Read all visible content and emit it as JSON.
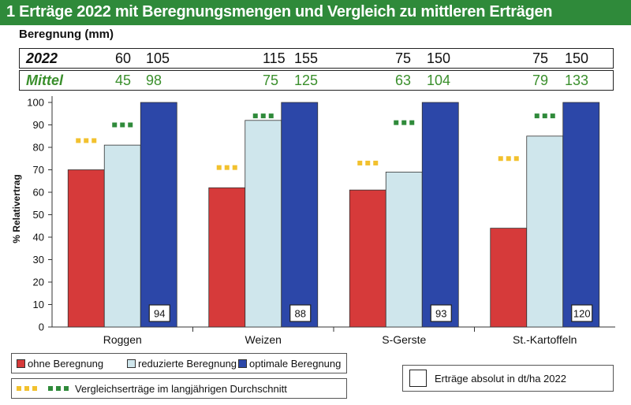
{
  "title": "1 Erträge 2022 mit Beregnungsmengen und Vergleich zu mittleren Erträgen",
  "irrigation": {
    "label": "Beregnung (mm)",
    "row_2022": {
      "label": "2022",
      "values": [
        "60",
        "105",
        "115",
        "155",
        "75",
        "150",
        "75",
        "150"
      ]
    },
    "row_mittel": {
      "label": "Mittel",
      "values": [
        "45",
        "98",
        "75",
        "125",
        "63",
        "104",
        "79",
        "133"
      ]
    }
  },
  "chart_data": {
    "type": "bar",
    "title": "",
    "xlabel": "",
    "ylabel": "% Relativertrag",
    "ylim": [
      0,
      100
    ],
    "yticks": [
      0,
      10,
      20,
      30,
      40,
      50,
      60,
      70,
      80,
      90,
      100
    ],
    "grid": false,
    "categories": [
      "Roggen",
      "Weizen",
      "S-Gerste",
      "St.-Kartoffeln"
    ],
    "series": [
      {
        "name": "ohne Beregnung",
        "color": "#d63a3a",
        "values": [
          70,
          62,
          61,
          44
        ]
      },
      {
        "name": "reduzierte Beregnung",
        "color": "#cfe6ec",
        "values": [
          81,
          92,
          69,
          85
        ]
      },
      {
        "name": "optimale Beregnung",
        "color": "#2c47a8",
        "values": [
          100,
          100,
          100,
          100
        ]
      }
    ],
    "comparison": {
      "label": "Vergleichserträge im langjährigen Durchschnitt",
      "reduced_color": "#f2c12e",
      "optimal_color": "#2f8a3a",
      "reduced_values": [
        83,
        71,
        73,
        75
      ],
      "optimal_values": [
        90,
        94,
        91,
        94
      ]
    },
    "absolute": {
      "label": "Erträge absolut in dt/ha 2022",
      "values": [
        "94",
        "88",
        "93",
        "120"
      ]
    }
  }
}
